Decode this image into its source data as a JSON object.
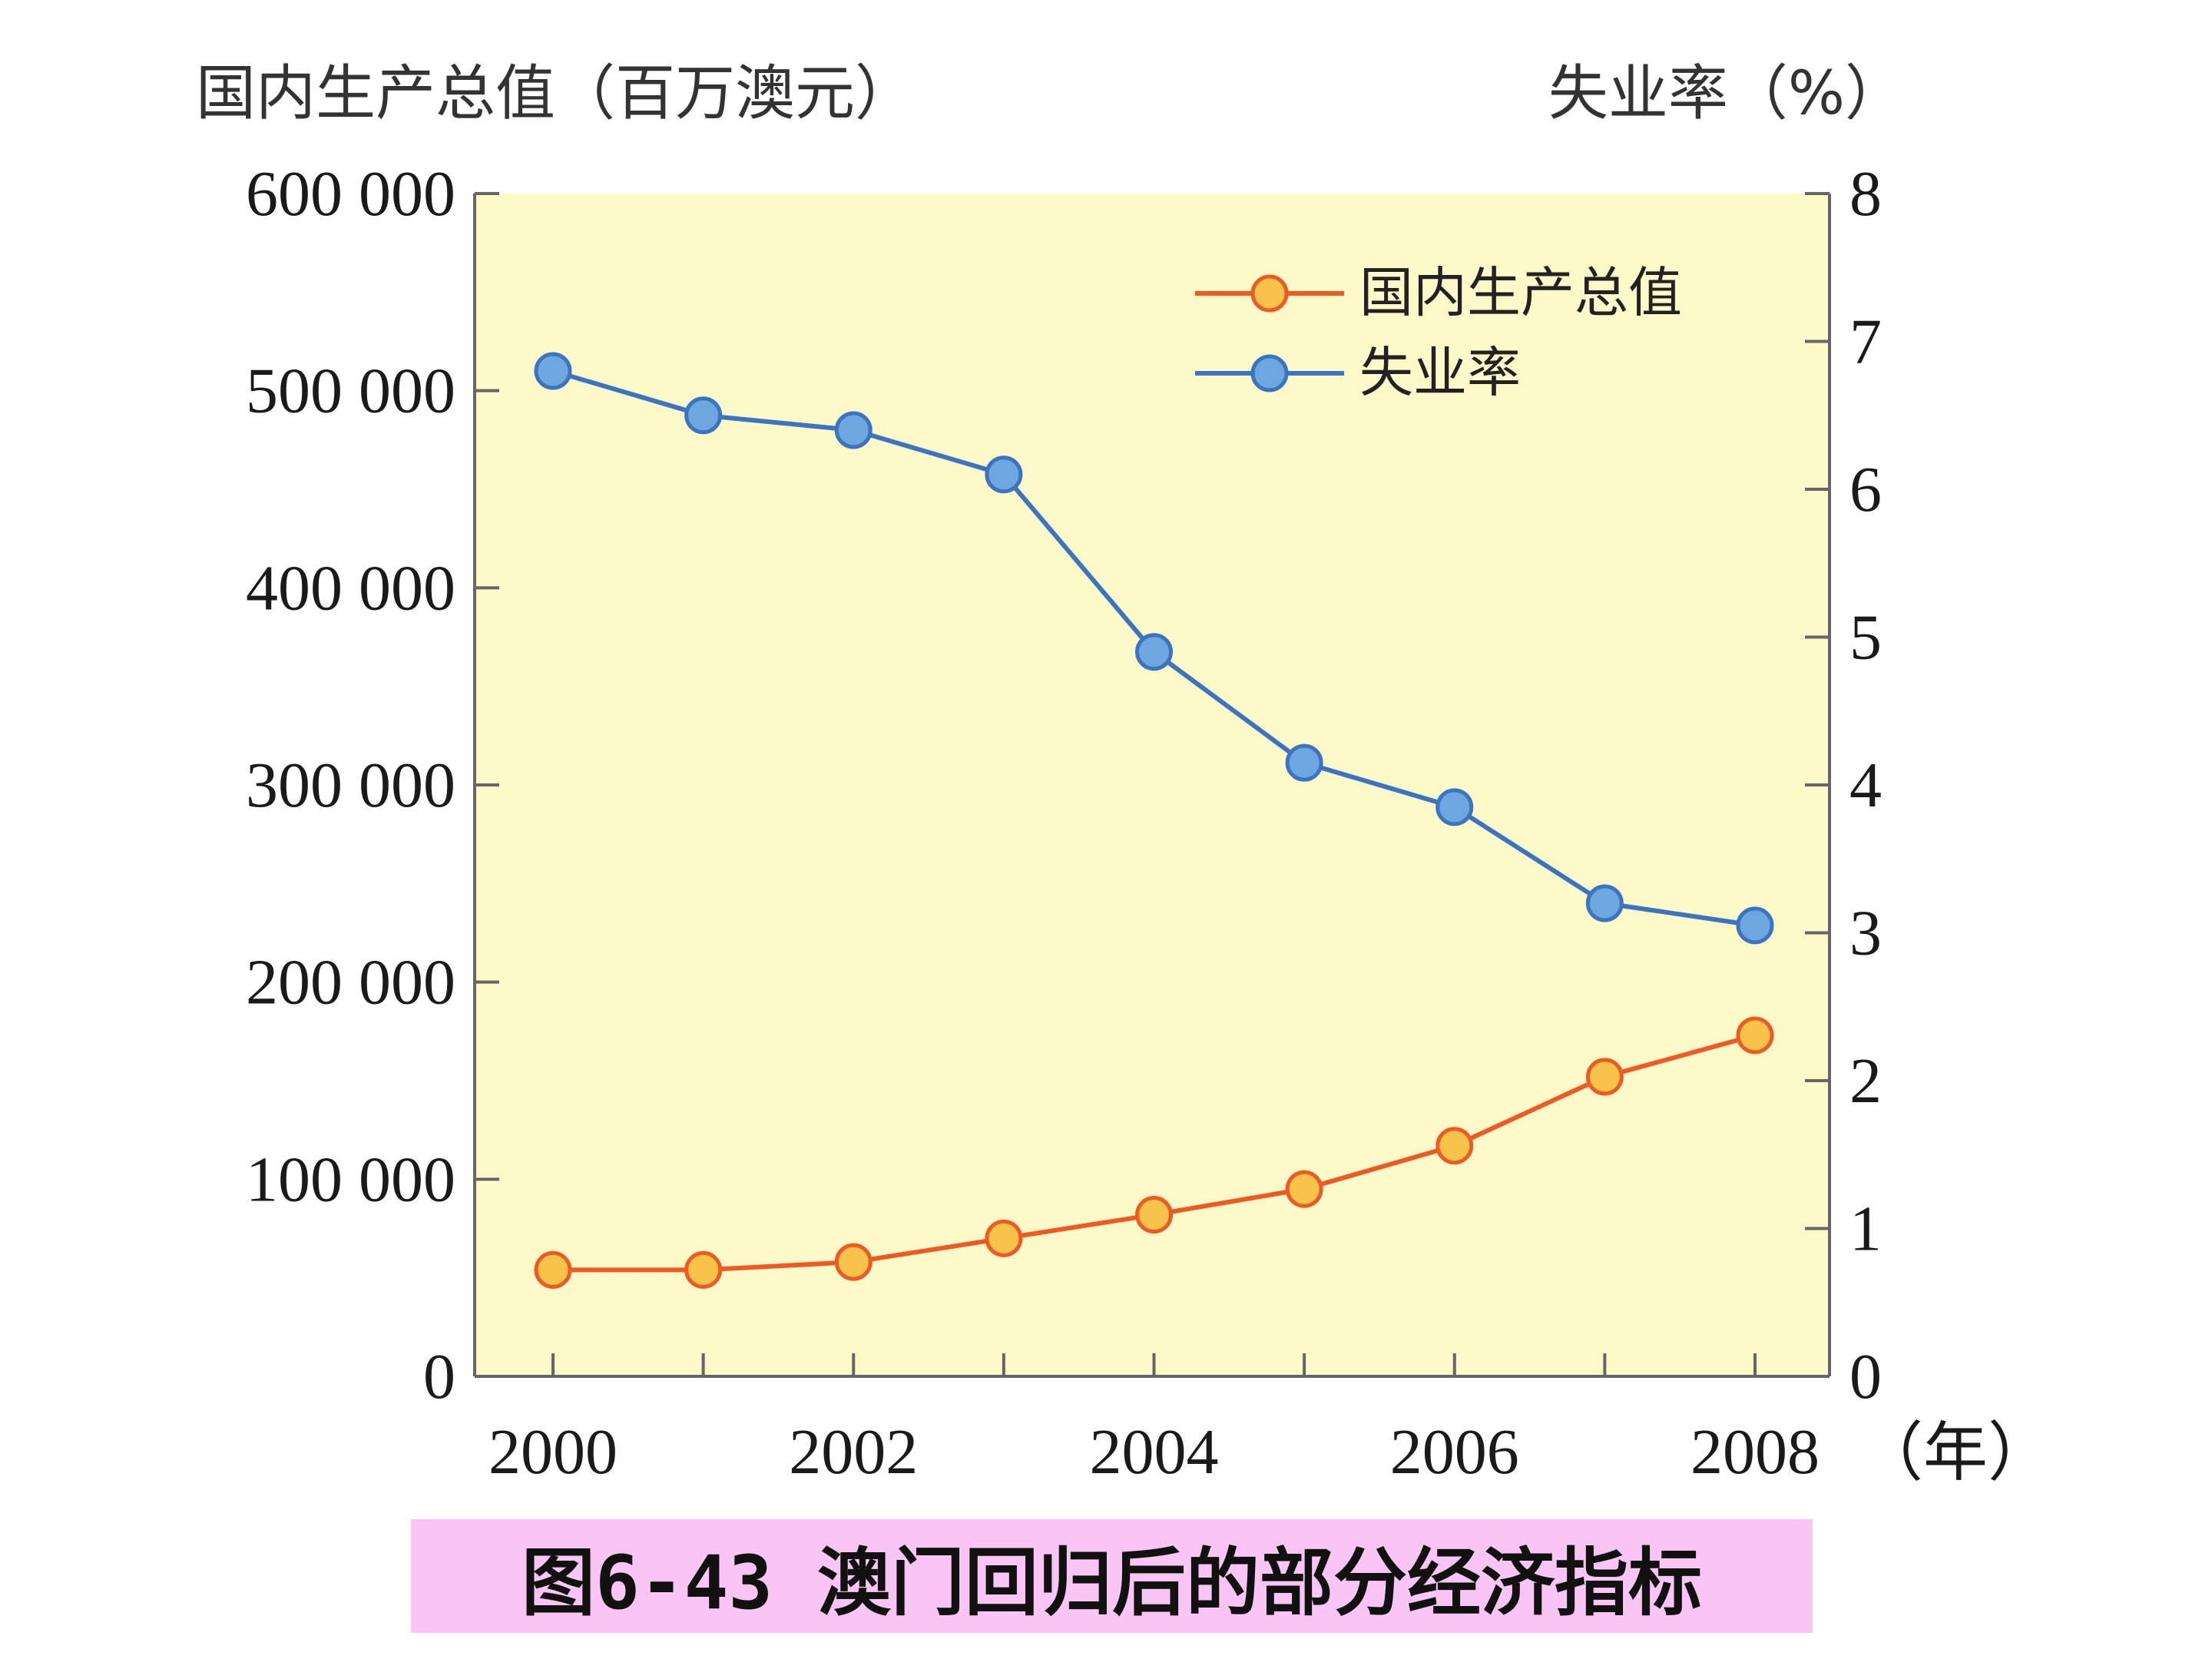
{
  "caption": "图6-43 澳门回归后的部分经济指标",
  "chart_data": {
    "type": "line",
    "dual_axis": true,
    "left_axis": {
      "label": "国内生产总值（百万澳元）",
      "range": [
        0,
        600000
      ],
      "ticks": [
        0,
        100000,
        200000,
        300000,
        400000,
        500000,
        600000
      ],
      "tick_labels": [
        "0",
        "100 000",
        "200 000",
        "300 000",
        "400 000",
        "500 000",
        "600 000"
      ]
    },
    "right_axis": {
      "label": "失业率（%）",
      "range": [
        0,
        8
      ],
      "ticks": [
        0,
        1,
        2,
        3,
        4,
        5,
        6,
        7,
        8
      ],
      "tick_labels": [
        "0",
        "1",
        "2",
        "3",
        "4",
        "5",
        "6",
        "7",
        "8"
      ]
    },
    "x_axis": {
      "range": [
        2000,
        2008
      ],
      "tick_labels": [
        "2000",
        "2002",
        "2004",
        "2006",
        "2008"
      ],
      "tick_values": [
        2000,
        2002,
        2004,
        2006,
        2008
      ],
      "unit_label": "（年）"
    },
    "x": [
      2000,
      2001,
      2002,
      2003,
      2004,
      2005,
      2006,
      2007,
      2008
    ],
    "series": [
      {
        "name": "国内生产总值",
        "axis": "left",
        "color": "#ef5a24",
        "marker_color": "#f7c34a",
        "values": [
          54000,
          54000,
          58000,
          70000,
          82000,
          95000,
          117000,
          152000,
          173000
        ]
      },
      {
        "name": "失业率",
        "axis": "right",
        "color": "#3b74c0",
        "marker_color": "#6ea6e0",
        "values": [
          6.8,
          6.5,
          6.4,
          6.1,
          4.9,
          4.15,
          3.85,
          3.2,
          3.05
        ]
      }
    ],
    "legend_position": "top-right",
    "plot_background": "#fdf9c8",
    "grid": false
  }
}
